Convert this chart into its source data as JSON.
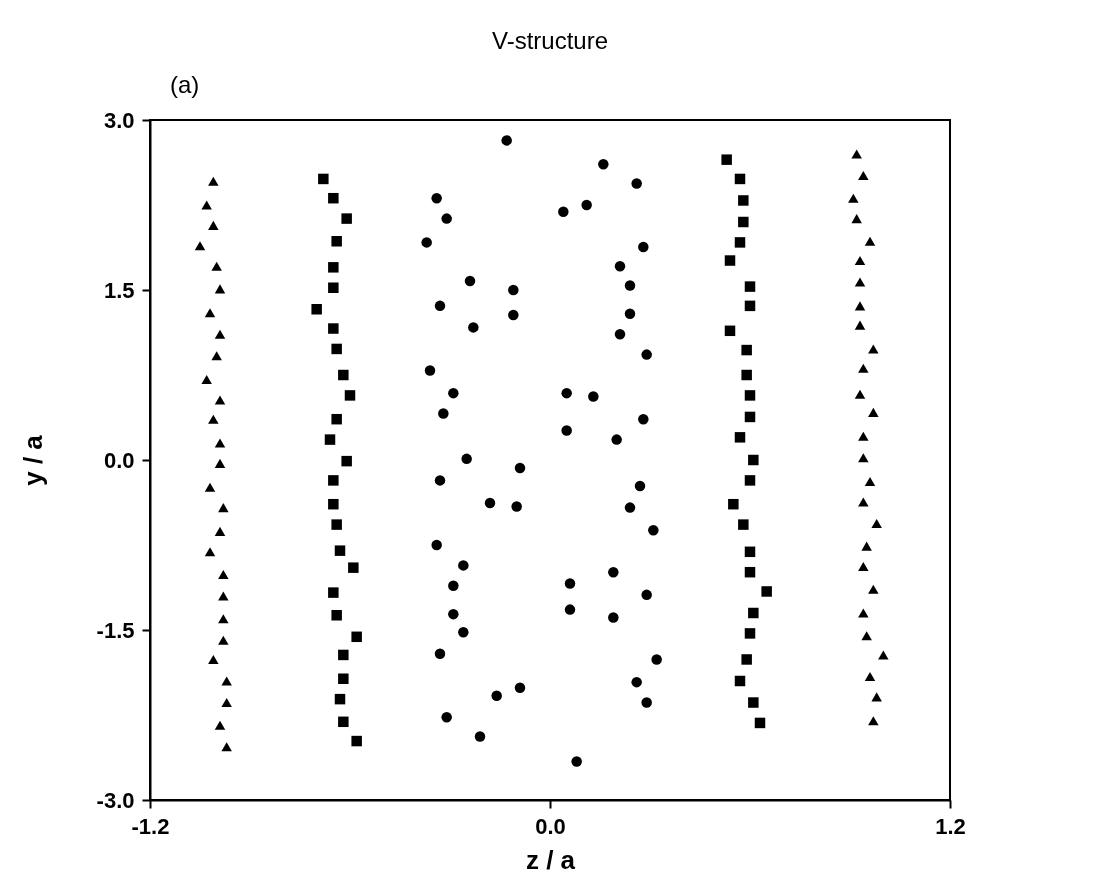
{
  "chart_data": {
    "type": "scatter",
    "title": "V-structure",
    "xlabel": "z / a",
    "ylabel": "y / a",
    "annotations": [
      "(a)"
    ],
    "xlim": [
      -1.2,
      1.2
    ],
    "ylim": [
      -3.0,
      3.0
    ],
    "xticks": [
      {
        "value": -1.2,
        "label": "-1.2"
      },
      {
        "value": 0,
        "label": "0.0"
      },
      {
        "value": 1.2,
        "label": "1.2"
      }
    ],
    "yticks": [
      {
        "value": -3.0,
        "label": "-3.0"
      },
      {
        "value": -1.5,
        "label": "-1.5"
      },
      {
        "value": 0,
        "label": "0.0"
      },
      {
        "value": 1.5,
        "label": "1.5"
      },
      {
        "value": 3.0,
        "label": "3.0"
      }
    ],
    "grid": false,
    "series": [
      {
        "color": "#000000",
        "marker": "triangle",
        "x": [
          -1.01,
          -1.03,
          -1.01,
          -1.05,
          -1.0,
          -0.99,
          -1.02,
          -0.99,
          -1.0,
          -1.03,
          -0.99,
          -1.01,
          -0.99,
          -0.99,
          -1.02,
          -0.98,
          -0.99,
          -1.02,
          -0.98,
          -0.98,
          -0.98,
          -0.98,
          -1.01,
          -0.97,
          -0.97,
          -0.99,
          -0.97
        ],
        "values": [
          2.46,
          2.25,
          2.07,
          1.89,
          1.71,
          1.51,
          1.3,
          1.11,
          0.92,
          0.71,
          0.53,
          0.36,
          0.15,
          -0.03,
          -0.24,
          -0.42,
          -0.63,
          -0.81,
          -1.01,
          -1.2,
          -1.4,
          -1.59,
          -1.76,
          -1.95,
          -2.14,
          -2.34,
          -2.53
        ]
      },
      {
        "color": "#000000",
        "marker": "square",
        "x": [
          -0.68,
          -0.65,
          -0.61,
          -0.64,
          -0.65,
          -0.65,
          -0.7,
          -0.65,
          -0.64,
          -0.62,
          -0.6,
          -0.64,
          -0.66,
          -0.61,
          -0.65,
          -0.65,
          -0.64,
          -0.63,
          -0.59,
          -0.65,
          -0.64,
          -0.58,
          -0.62,
          -0.62,
          -0.63,
          -0.62,
          -0.58
        ],
        "values": [
          2.48,
          2.31,
          2.13,
          1.93,
          1.7,
          1.52,
          1.33,
          1.16,
          0.98,
          0.75,
          0.57,
          0.36,
          0.18,
          -0.01,
          -0.18,
          -0.39,
          -0.57,
          -0.8,
          -0.95,
          -1.17,
          -1.37,
          -1.56,
          -1.72,
          -1.93,
          -2.11,
          -2.31,
          -2.48
        ]
      },
      {
        "color": "#000000",
        "marker": "circle",
        "x": [
          -0.13,
          -0.34,
          -0.31,
          -0.37,
          -0.24,
          -0.11,
          -0.33,
          -0.11,
          -0.23,
          -0.36,
          -0.29,
          -0.32,
          -0.25,
          -0.09,
          -0.33,
          -0.18,
          -0.1,
          -0.34,
          -0.26,
          -0.29,
          -0.29,
          -0.26,
          -0.33,
          -0.09,
          -0.16,
          -0.31,
          -0.21
        ],
        "values": [
          2.82,
          2.31,
          2.13,
          1.92,
          1.58,
          1.5,
          1.36,
          1.28,
          1.17,
          0.79,
          0.59,
          0.41,
          0.01,
          -0.07,
          -0.18,
          -0.38,
          -0.41,
          -0.75,
          -0.93,
          -1.11,
          -1.36,
          -1.52,
          -1.71,
          -2.01,
          -2.08,
          -2.27,
          -2.44
        ]
      },
      {
        "color": "#000000",
        "marker": "circle",
        "x": [
          0.16,
          0.26,
          0.11,
          0.04,
          0.28,
          0.21,
          0.24,
          0.24,
          0.21,
          0.29,
          0.05,
          0.13,
          0.28,
          0.05,
          0.2,
          0.27,
          0.24,
          0.31,
          0.19,
          0.06,
          0.29,
          0.06,
          0.19,
          0.32,
          0.26,
          0.29,
          0.08
        ],
        "values": [
          2.61,
          2.44,
          2.25,
          2.19,
          1.88,
          1.71,
          1.54,
          1.29,
          1.11,
          0.93,
          0.59,
          0.56,
          0.36,
          0.26,
          0.18,
          -0.23,
          -0.42,
          -0.62,
          -0.99,
          -1.09,
          -1.19,
          -1.32,
          -1.39,
          -1.76,
          -1.96,
          -2.14,
          -2.66
        ]
      },
      {
        "color": "#000000",
        "marker": "square",
        "x": [
          0.53,
          0.57,
          0.58,
          0.58,
          0.57,
          0.54,
          0.6,
          0.6,
          0.54,
          0.59,
          0.59,
          0.6,
          0.6,
          0.57,
          0.61,
          0.6,
          0.55,
          0.58,
          0.6,
          0.6,
          0.65,
          0.61,
          0.6,
          0.59,
          0.57,
          0.61,
          0.63
        ],
        "values": [
          2.65,
          2.48,
          2.29,
          2.1,
          1.92,
          1.76,
          1.53,
          1.36,
          1.14,
          0.97,
          0.75,
          0.57,
          0.38,
          0.2,
          0.0,
          -0.18,
          -0.39,
          -0.57,
          -0.81,
          -0.99,
          -1.16,
          -1.35,
          -1.53,
          -1.76,
          -1.95,
          -2.14,
          -2.32
        ]
      },
      {
        "color": "#000000",
        "marker": "triangle",
        "x": [
          0.92,
          0.94,
          0.91,
          0.92,
          0.96,
          0.93,
          0.93,
          0.93,
          0.93,
          0.97,
          0.94,
          0.93,
          0.97,
          0.94,
          0.94,
          0.96,
          0.94,
          0.98,
          0.95,
          0.94,
          0.97,
          0.94,
          0.95,
          1.0,
          0.96,
          0.98,
          0.97
        ],
        "values": [
          2.7,
          2.51,
          2.31,
          2.13,
          1.93,
          1.76,
          1.57,
          1.36,
          1.19,
          0.98,
          0.81,
          0.58,
          0.42,
          0.21,
          0.02,
          -0.19,
          -0.37,
          -0.56,
          -0.76,
          -0.94,
          -1.14,
          -1.35,
          -1.55,
          -1.72,
          -1.91,
          -2.09,
          -2.3
        ]
      }
    ]
  }
}
